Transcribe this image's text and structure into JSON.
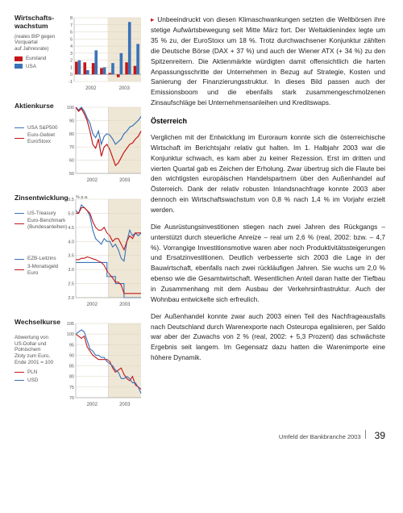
{
  "charts": {
    "gdp": {
      "title": "Wirtschafts-\nwachstum",
      "subtitle": "(reales BIP gegen\nVorquartal\nauf Jahresrate)",
      "legend": [
        {
          "label": "Euroland",
          "color": "#c31619"
        },
        {
          "label": "USA",
          "color": "#3a73b8"
        }
      ],
      "type": "bar",
      "categories_years": [
        "2002",
        "2003"
      ],
      "quarters": 8,
      "series": [
        {
          "name": "Euroland",
          "color": "#c31619",
          "values": [
            1.8,
            1.7,
            1.6,
            0.9,
            0.2,
            -0.4,
            1.7,
            1.2
          ]
        },
        {
          "name": "USA",
          "color": "#3a73b8",
          "values": [
            2.0,
            0.6,
            3.4,
            1.0,
            1.6,
            3.0,
            7.4,
            4.3
          ]
        }
      ],
      "ylim": [
        -1,
        8
      ],
      "ytick_step": 1,
      "background_color": "#ffffff",
      "grid_color": "#dcd3c0",
      "highlight_band": {
        "from": 4,
        "to": 8,
        "color": "#efe7d6"
      },
      "bar_width": 0.35,
      "axis_fontsize": 5.5
    },
    "stocks": {
      "title": "Aktienkurse",
      "legend": [
        {
          "label": "USA S&P500",
          "color": "#3a73b8"
        },
        {
          "label": "Euro-Gebiet\nEuroStoxx",
          "color": "#c31619"
        }
      ],
      "type": "line",
      "ylim": [
        50,
        100
      ],
      "ytick_step": 10,
      "x_years": [
        "2002",
        "2003"
      ],
      "grid_color": "#dcd3c0",
      "highlight_band": {
        "from": 0.5,
        "to": 1.0,
        "color": "#efe7d6"
      },
      "series": [
        {
          "name": "S&P500",
          "color": "#3a73b8",
          "values": [
            100,
            98,
            100,
            97,
            92,
            88,
            80,
            77,
            82,
            72,
            78,
            80,
            79,
            76,
            72,
            74,
            76,
            80,
            82,
            85,
            86,
            88,
            90,
            93
          ]
        },
        {
          "name": "EuroStoxx",
          "color": "#c31619",
          "values": [
            100,
            97,
            99,
            95,
            90,
            82,
            72,
            69,
            76,
            63,
            70,
            72,
            68,
            62,
            56,
            58,
            62,
            66,
            69,
            72,
            73,
            76,
            78,
            82
          ]
        }
      ],
      "line_width": 1.2,
      "axis_fontsize": 5.5
    },
    "rates": {
      "title": "Zinsentwicklung",
      "ylabel": "% p.a.",
      "legend_top": [
        {
          "label": "US-Treasury",
          "color": "#3a73b8"
        },
        {
          "label": "Euro-Benchmark\n(Bundesanleihen)",
          "color": "#c31619"
        }
      ],
      "legend_bottom": [
        {
          "label": "EZB-Leitzins",
          "color": "#3a73b8"
        },
        {
          "label": "3-Monatsgeld Euro",
          "color": "#c31619"
        }
      ],
      "type": "line",
      "ylim": [
        2.0,
        5.5
      ],
      "ytick_step": 0.5,
      "x_years": [
        "2002",
        "2003"
      ],
      "grid_color": "#dcd3c0",
      "highlight_band": {
        "from": 0.5,
        "to": 1.0,
        "color": "#efe7d6"
      },
      "series": [
        {
          "name": "US-Treasury",
          "color": "#3a73b8",
          "values": [
            5.1,
            5.0,
            5.3,
            5.2,
            5.1,
            4.9,
            4.4,
            4.1,
            4.0,
            3.9,
            4.1,
            4.0,
            4.0,
            3.8,
            3.9,
            3.7,
            3.4,
            3.3,
            4.0,
            4.4,
            4.2,
            4.3,
            4.2,
            4.3
          ]
        },
        {
          "name": "Bund",
          "color": "#c31619",
          "values": [
            5.0,
            5.0,
            5.2,
            5.2,
            5.1,
            5.0,
            4.7,
            4.5,
            4.4,
            4.4,
            4.5,
            4.3,
            4.2,
            4.0,
            4.1,
            4.1,
            3.9,
            3.7,
            4.0,
            4.2,
            4.1,
            4.3,
            4.3,
            4.3
          ]
        },
        {
          "name": "EZB",
          "color": "#3a73b8",
          "step": true,
          "values": [
            3.25,
            3.25,
            3.25,
            3.25,
            3.25,
            3.25,
            3.25,
            3.25,
            3.25,
            3.25,
            3.25,
            2.75,
            2.75,
            2.75,
            2.5,
            2.5,
            2.5,
            2.0,
            2.0,
            2.0,
            2.0,
            2.0,
            2.0,
            2.0
          ]
        },
        {
          "name": "3M-Euro",
          "color": "#c31619",
          "values": [
            3.35,
            3.35,
            3.4,
            3.4,
            3.45,
            3.42,
            3.38,
            3.35,
            3.3,
            3.25,
            3.15,
            2.95,
            2.82,
            2.7,
            2.55,
            2.55,
            2.45,
            2.15,
            2.15,
            2.15,
            2.15,
            2.15,
            2.15,
            2.15
          ]
        }
      ],
      "line_width": 1.1,
      "axis_fontsize": 5.5
    },
    "fx": {
      "title": "Wechselkurse",
      "subtitle": "Abwertung von\nUS-Dollar und Polnischem\nZloty zum Euro,\nEnde 2001 = 100",
      "legend": [
        {
          "label": "PLN",
          "color": "#c31619"
        },
        {
          "label": "USD",
          "color": "#3a73b8"
        }
      ],
      "type": "line",
      "ylim": [
        70,
        105
      ],
      "ytick_step": 5,
      "x_years": [
        "2002",
        "2003"
      ],
      "grid_color": "#dcd3c0",
      "highlight_band": {
        "from": 0.5,
        "to": 1.0,
        "color": "#efe7d6"
      },
      "series": [
        {
          "name": "PLN",
          "color": "#c31619",
          "values": [
            100,
            99,
            98,
            99,
            94,
            92,
            90,
            89,
            88,
            88,
            88,
            88,
            87,
            84,
            82,
            83,
            84,
            81,
            79,
            78,
            80,
            76,
            75,
            74
          ]
        },
        {
          "name": "USD",
          "color": "#3a73b8",
          "values": [
            100,
            101,
            102,
            101,
            97,
            93,
            92,
            90,
            90,
            89,
            89,
            87,
            86,
            85,
            83,
            82,
            79,
            79,
            80,
            79,
            77,
            77,
            75,
            72
          ]
        }
      ],
      "line_width": 1.1,
      "axis_fontsize": 5.5
    }
  },
  "text": {
    "p1": "Unbeeindruckt von diesen Klimaschwankungen setzten die Weltbörsen ihre stetige Aufwärtsbewegung seit Mitte März fort. Der Weltaktienindex legte um 35 % zu, der EuroStoxx um 18 %. Trotz durchwachsener Konjunktur zählten die Deutsche Börse (DAX + 37 %) und auch der Wiener ATX (+ 34 %) zu den Spitzenreitern. Die Aktienmärkte würdigten damit offensichtlich die harten Anpassungsschritte der Unternehmen in Bezug auf Strategie, Kosten und Sanierung der Finanzierungsstruktur. In dieses Bild passen auch der Emissionsboom und die ebenfalls stark zusammengeschmolzenen Zinsaufschläge bei Unternehmensanleihen und Kreditswaps.",
    "subsection": "Österreich",
    "p2": "Verglichen mit der Entwicklung im Euroraum konnte sich die österreichische Wirtschaft im Berichtsjahr relativ gut halten. Im 1. Halbjahr 2003 war die Konjunktur schwach, es kam aber zu keiner Rezession. Erst im dritten und vierten Quartal gab es Zeichen der Erholung. Zwar übertrug sich die Flaute bei den wichtigsten europäischen Handelspartnern über den Außenhandel auf Österreich. Dank der relativ robusten Inlandsnachfrage konnte 2003 aber dennoch ein Wirtschaftswachstum von 0,8 % nach 1,4 % im Vorjahr erzielt werden.",
    "p3": "Die Ausrüstungsinvestitionen stiegen nach zwei Jahren des Rückgangs – unterstützt durch steuerliche Anreize – real um 2,6 % (real, 2002: bzw. – 4,7 %). Vorrangige Investitionsmotive waren aber noch Produktivitätssteigerungen und Ersatzinvestitionen. Deutlich verbesserte sich 2003 die Lage in der Bauwirtschaft, ebenfalls nach zwei rückläufigen Jahren. Sie wuchs um 2,0 % ebenso wie die Gesamtwirtschaft. Wesentlichen Anteil daran hatte der Tiefbau in Zusammenhang mit dem Ausbau der Verkehrsinfrastruktur. Auch der Wohnbau entwickelte sich erfreulich.",
    "p4": "Der Außenhandel konnte zwar auch 2003 einen Teil des Nachfrageausfalls nach Deutschland durch Warenexporte nach Osteuropa egalisieren, per Saldo war aber der Zuwachs von 2 % (real, 2002: + 5,3 Prozent) das schwächste Ergebnis seit langem. Im Gegensatz dazu hatten die Warenimporte eine höhere Dynamik."
  },
  "footer": {
    "label": "Umfeld der Bankbranche 2003",
    "page": "39"
  }
}
